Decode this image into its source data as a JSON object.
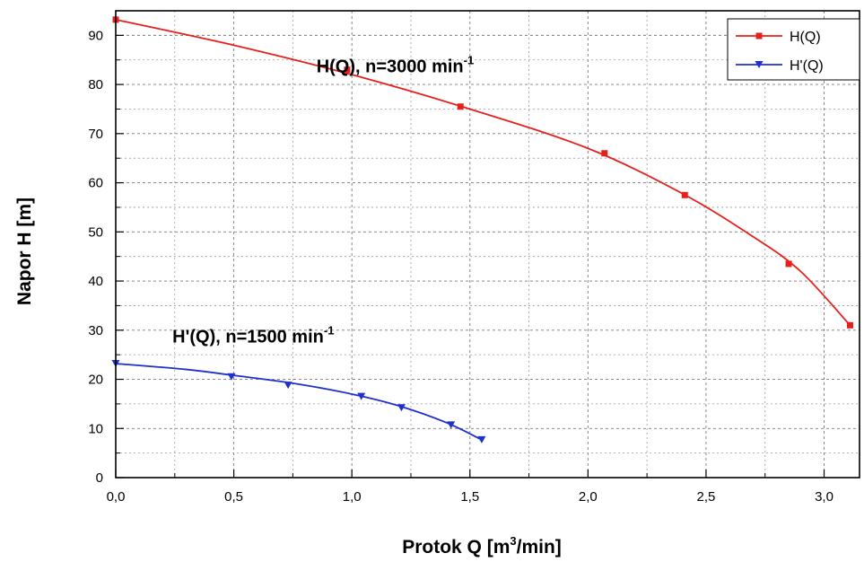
{
  "chart_data": {
    "type": "line",
    "xlabel": "Protok Q [m",
    "xlabel_sup": "3",
    "xlabel_end": "/min]",
    "ylabel": "Napor H [m]",
    "xlim": [
      0,
      3.15
    ],
    "ylim": [
      0,
      95
    ],
    "x_ticks": [
      {
        "value": 0,
        "label": "0,0"
      },
      {
        "value": 0.5,
        "label": "0,5"
      },
      {
        "value": 1.0,
        "label": "1,0"
      },
      {
        "value": 1.5,
        "label": "1,5"
      },
      {
        "value": 2.0,
        "label": "2,0"
      },
      {
        "value": 2.5,
        "label": "2,5"
      },
      {
        "value": 3.0,
        "label": "3,0"
      }
    ],
    "y_ticks": [
      {
        "value": 0,
        "label": "0"
      },
      {
        "value": 10,
        "label": "10"
      },
      {
        "value": 20,
        "label": "20"
      },
      {
        "value": 30,
        "label": "30"
      },
      {
        "value": 40,
        "label": "40"
      },
      {
        "value": 50,
        "label": "50"
      },
      {
        "value": 60,
        "label": "60"
      },
      {
        "value": 70,
        "label": "70"
      },
      {
        "value": 80,
        "label": "80"
      },
      {
        "value": 90,
        "label": "90"
      }
    ],
    "grid": true,
    "legend_position": "top-right",
    "series": [
      {
        "name": "H(Q)",
        "color": "#e8201c",
        "marker": "square",
        "points": [
          {
            "x": 0.0,
            "y": 93.2
          },
          {
            "x": 0.98,
            "y": 83.0
          },
          {
            "x": 1.46,
            "y": 75.5
          },
          {
            "x": 2.07,
            "y": 66.0
          },
          {
            "x": 2.41,
            "y": 57.5
          },
          {
            "x": 2.85,
            "y": 43.5
          },
          {
            "x": 3.11,
            "y": 31.0
          }
        ],
        "curve": [
          {
            "x": 0.0,
            "y": 93.2
          },
          {
            "x": 0.5,
            "y": 88.0
          },
          {
            "x": 1.0,
            "y": 82.0
          },
          {
            "x": 1.5,
            "y": 75.0
          },
          {
            "x": 2.0,
            "y": 67.0
          },
          {
            "x": 2.4,
            "y": 57.8
          },
          {
            "x": 2.7,
            "y": 49.0
          },
          {
            "x": 2.9,
            "y": 42.0
          },
          {
            "x": 3.11,
            "y": 31.0
          }
        ]
      },
      {
        "name": "H'(Q)",
        "color": "#1f2fd0",
        "marker": "triangle-down",
        "points": [
          {
            "x": 0.0,
            "y": 23.2
          },
          {
            "x": 0.49,
            "y": 20.5
          },
          {
            "x": 0.73,
            "y": 18.8
          },
          {
            "x": 1.04,
            "y": 16.5
          },
          {
            "x": 1.21,
            "y": 14.2
          },
          {
            "x": 1.42,
            "y": 10.7
          },
          {
            "x": 1.55,
            "y": 7.7
          }
        ],
        "curve": [
          {
            "x": 0.0,
            "y": 23.2
          },
          {
            "x": 0.3,
            "y": 22.0
          },
          {
            "x": 0.5,
            "y": 20.8
          },
          {
            "x": 0.75,
            "y": 19.2
          },
          {
            "x": 1.0,
            "y": 17.0
          },
          {
            "x": 1.2,
            "y": 14.6
          },
          {
            "x": 1.4,
            "y": 11.2
          },
          {
            "x": 1.55,
            "y": 7.7
          }
        ]
      }
    ],
    "annotations": [
      {
        "text": "H(Q), n=3000 min",
        "sup": "-1",
        "x": 0.85,
        "y": 82.5
      },
      {
        "text": "H'(Q), n=1500 min",
        "sup": "-1",
        "x": 0.24,
        "y": 27.5
      }
    ]
  }
}
